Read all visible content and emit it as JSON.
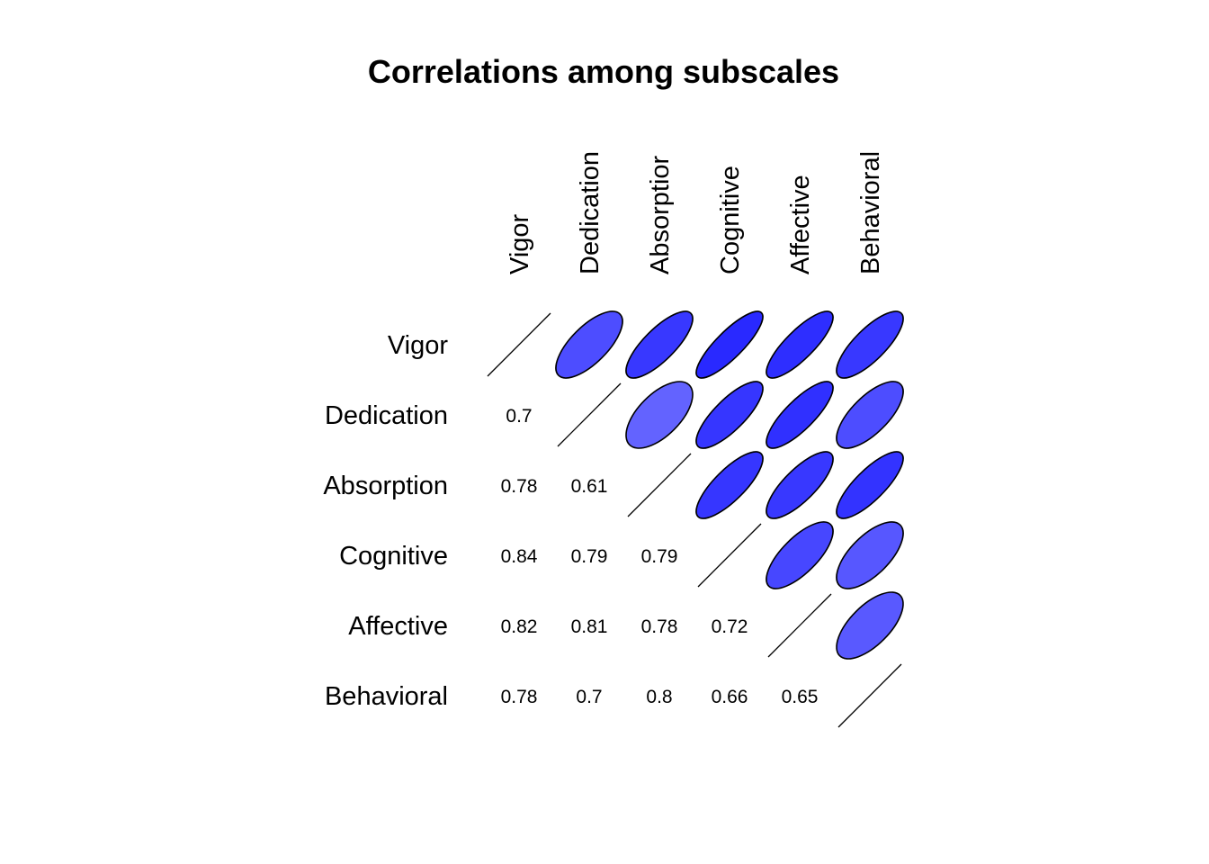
{
  "chart_data": {
    "type": "heatmap",
    "title": "Correlations among subscales",
    "variables": [
      "Vigor",
      "Dedication",
      "Absorption",
      "Cognitive",
      "Affective",
      "Behavioral"
    ],
    "column_labels_shown": [
      "Vigor",
      "Dedication",
      "Absorptior",
      "Cognitive",
      "Affective",
      "Behavioral"
    ],
    "matrix": [
      [
        1,
        0.7,
        0.78,
        0.84,
        0.82,
        0.78
      ],
      [
        0.7,
        1,
        0.61,
        0.79,
        0.81,
        0.7
      ],
      [
        0.78,
        0.61,
        1,
        0.79,
        0.78,
        0.8
      ],
      [
        0.84,
        0.79,
        0.79,
        1,
        0.72,
        0.66
      ],
      [
        0.82,
        0.81,
        0.78,
        0.72,
        1,
        0.65
      ],
      [
        0.78,
        0.7,
        0.8,
        0.66,
        0.65,
        1
      ]
    ],
    "upper_triangle": "ellipse",
    "lower_triangle": "number",
    "diagonal": "line",
    "color_scale": {
      "low": "#ffffff",
      "high": "#0000ff",
      "outline": "#000000"
    }
  }
}
